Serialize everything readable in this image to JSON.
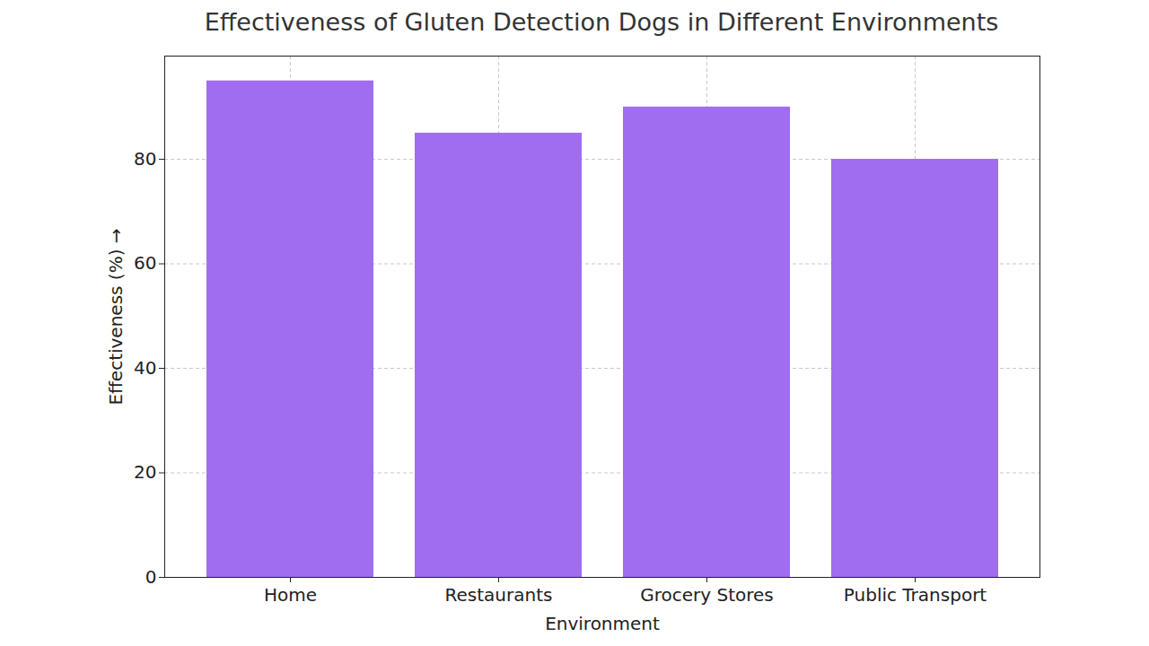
{
  "chart_data": {
    "type": "bar",
    "title": "Effectiveness of Gluten Detection Dogs in Different Environments",
    "x_label": "Environment",
    "y_label": "Effectiveness (%)",
    "categories": [
      "Home",
      "Restaurants",
      "Grocery Stores",
      "Public Transport"
    ],
    "values": [
      95,
      85,
      90,
      80
    ],
    "color": "#a06cf0",
    "ylim": [
      0,
      99.75
    ],
    "yticks": [
      0,
      20,
      40,
      60,
      80
    ],
    "grid": true
  }
}
